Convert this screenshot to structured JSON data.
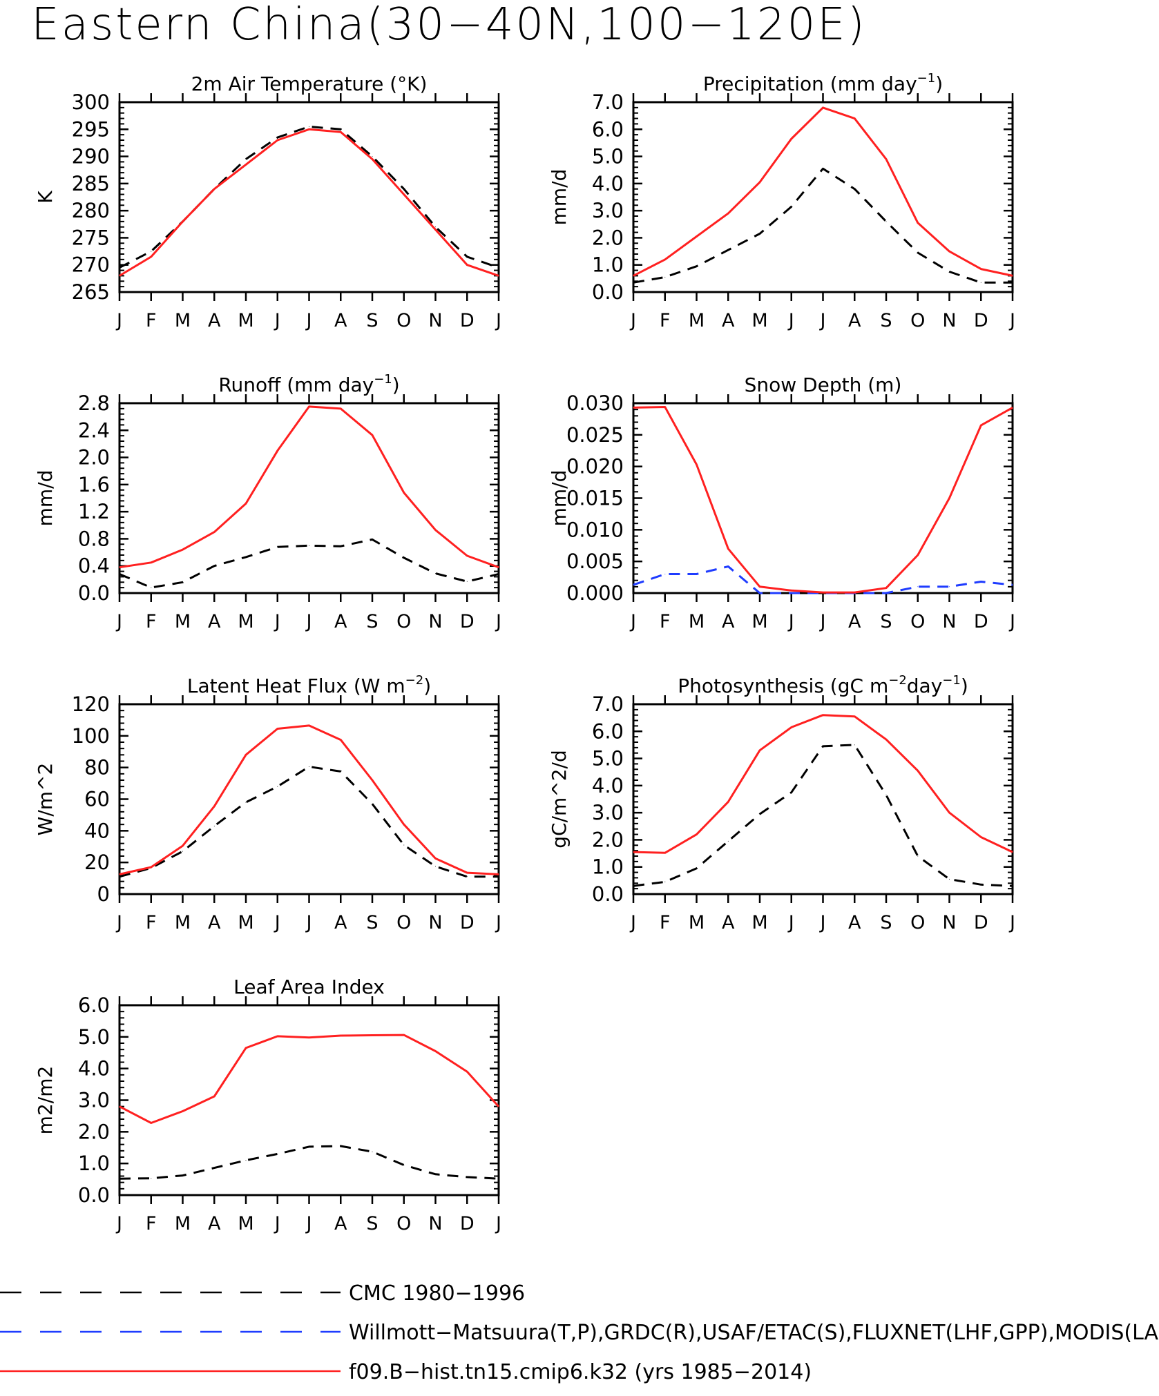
{
  "figure": {
    "title": "Eastern China(30−40N,100−120E)"
  },
  "months": [
    "J",
    "F",
    "M",
    "A",
    "M",
    "J",
    "J",
    "A",
    "S",
    "O",
    "N",
    "D",
    "J"
  ],
  "series_styles": {
    "obs1": {
      "color": "#000000",
      "dash": "dashed"
    },
    "obs2": {
      "color": "#1f3cff",
      "dash": "dashed"
    },
    "model": {
      "color": "#ff2020",
      "dash": "solid"
    }
  },
  "legend": [
    {
      "key": "obs1",
      "label": "CMC 1980−1996"
    },
    {
      "key": "obs2",
      "label": "Willmott−Matsuura(T,P),GRDC(R),USAF/ETAC(S),FLUXNET(LHF,GPP),MODIS(LAI)"
    },
    {
      "key": "model",
      "label": "f09.B−hist.tn15.cmip6.k32 (yrs 1985−2014)"
    }
  ],
  "chart_data": [
    {
      "type": "line",
      "title": "2m Air Temperature (°K)",
      "ylabel": "K",
      "ylim": [
        265,
        300
      ],
      "yticks": [
        265,
        270,
        275,
        280,
        285,
        290,
        295,
        300
      ],
      "ytick_labels": [
        "265",
        "270",
        "275",
        "280",
        "285",
        "290",
        "295",
        "300"
      ],
      "series": [
        {
          "key": "obs1",
          "values": [
            269.5,
            272.5,
            278.0,
            284.0,
            289.5,
            293.5,
            295.5,
            295.0,
            290.0,
            284.0,
            277.0,
            271.5,
            269.5
          ]
        },
        {
          "key": "model",
          "values": [
            268.0,
            271.5,
            278.0,
            284.0,
            288.5,
            293.0,
            295.0,
            294.5,
            289.5,
            283.0,
            276.5,
            270.0,
            268.0
          ]
        }
      ]
    },
    {
      "type": "line",
      "title": "Precipitation (mm day",
      "title_sup": "−1",
      "title_end": ")",
      "ylabel": "mm/d",
      "ylim": [
        0,
        7
      ],
      "yticks": [
        0,
        1,
        2,
        3,
        4,
        5,
        6,
        7
      ],
      "ytick_labels": [
        "0.0",
        "1.0",
        "2.0",
        "3.0",
        "4.0",
        "5.0",
        "6.0",
        "7.0"
      ],
      "series": [
        {
          "key": "obs1",
          "values": [
            0.35,
            0.55,
            0.95,
            1.55,
            2.15,
            3.15,
            4.55,
            3.8,
            2.6,
            1.45,
            0.75,
            0.35,
            0.35
          ]
        },
        {
          "key": "model",
          "values": [
            0.6,
            1.2,
            2.05,
            2.9,
            4.05,
            5.65,
            6.8,
            6.4,
            4.9,
            2.55,
            1.5,
            0.85,
            0.6
          ]
        }
      ]
    },
    {
      "type": "line",
      "title": "Runoff (mm day",
      "title_sup": "−1",
      "title_end": ")",
      "ylabel": "mm/d",
      "ylim": [
        0,
        2.8
      ],
      "yticks": [
        0,
        0.4,
        0.8,
        1.2,
        1.6,
        2.0,
        2.4,
        2.8
      ],
      "ytick_labels": [
        "0.0",
        "0.4",
        "0.8",
        "1.2",
        "1.6",
        "2.0",
        "2.4",
        "2.8"
      ],
      "series": [
        {
          "key": "obs1",
          "values": [
            0.28,
            0.08,
            0.16,
            0.4,
            0.53,
            0.68,
            0.7,
            0.69,
            0.79,
            0.52,
            0.29,
            0.17,
            0.28
          ]
        },
        {
          "key": "model",
          "values": [
            0.38,
            0.45,
            0.64,
            0.9,
            1.32,
            2.1,
            2.75,
            2.72,
            2.33,
            1.48,
            0.93,
            0.55,
            0.38
          ]
        }
      ]
    },
    {
      "type": "line",
      "title": "Snow Depth (m)",
      "ylabel": "mm/d",
      "ylim": [
        0,
        0.03
      ],
      "yticks": [
        0,
        0.005,
        0.01,
        0.015,
        0.02,
        0.025,
        0.03
      ],
      "ytick_labels": [
        "0.000",
        "0.005",
        "0.010",
        "0.015",
        "0.020",
        "0.025",
        "0.030"
      ],
      "series": [
        {
          "key": "obs1",
          "values": [
            0,
            0,
            0,
            0,
            0,
            0,
            0,
            0,
            0,
            0,
            0,
            0,
            0
          ]
        },
        {
          "key": "obs2",
          "values": [
            0.0013,
            0.003,
            0.003,
            0.0042,
            0,
            0,
            0,
            0,
            0,
            0.001,
            0.001,
            0.0018,
            0.0013
          ]
        },
        {
          "key": "model",
          "values": [
            0.0293,
            0.0294,
            0.0203,
            0.007,
            0.001,
            0.0004,
            0.0001,
            0.0001,
            0.0008,
            0.006,
            0.015,
            0.0265,
            0.0293
          ]
        }
      ]
    },
    {
      "type": "line",
      "title": "Latent Heat Flux (W m",
      "title_sup": "−2",
      "title_end": ")",
      "ylabel": "W/m^2",
      "ylim": [
        0,
        120
      ],
      "yticks": [
        0,
        20,
        40,
        60,
        80,
        100,
        120
      ],
      "ytick_labels": [
        "0",
        "20",
        "40",
        "60",
        "80",
        "100",
        "120"
      ],
      "series": [
        {
          "key": "obs1",
          "values": [
            11,
            16.5,
            27,
            43,
            58,
            68,
            80.5,
            77.5,
            57,
            31,
            17.5,
            11,
            11
          ]
        },
        {
          "key": "model",
          "values": [
            12.5,
            17,
            30.5,
            55.5,
            88,
            104.5,
            106.5,
            97.5,
            72,
            44,
            22.5,
            13.5,
            12.5
          ]
        }
      ]
    },
    {
      "type": "line",
      "title": "Photosynthesis (gC m",
      "title_sup": "−2",
      "title_mid": "day",
      "title_sup2": "−1",
      "title_end": ")",
      "ylabel": "gC/m^2/d",
      "ylim": [
        0,
        7
      ],
      "yticks": [
        0,
        1,
        2,
        3,
        4,
        5,
        6,
        7
      ],
      "ytick_labels": [
        "0.0",
        "1.0",
        "2.0",
        "3.0",
        "4.0",
        "5.0",
        "6.0",
        "7.0"
      ],
      "series": [
        {
          "key": "obs1",
          "values": [
            0.3,
            0.45,
            0.95,
            1.95,
            2.95,
            3.75,
            5.45,
            5.5,
            3.65,
            1.4,
            0.55,
            0.35,
            0.3
          ]
        },
        {
          "key": "model",
          "values": [
            1.55,
            1.52,
            2.2,
            3.4,
            5.3,
            6.15,
            6.6,
            6.55,
            5.7,
            4.55,
            3.0,
            2.1,
            1.55
          ]
        }
      ]
    },
    {
      "type": "line",
      "title": "Leaf Area Index",
      "ylabel": "m2/m2",
      "ylim": [
        0,
        6
      ],
      "yticks": [
        0,
        1,
        2,
        3,
        4,
        5,
        6
      ],
      "ytick_labels": [
        "0.0",
        "1.0",
        "2.0",
        "3.0",
        "4.0",
        "5.0",
        "6.0"
      ],
      "series": [
        {
          "key": "obs1",
          "values": [
            0.52,
            0.53,
            0.62,
            0.86,
            1.1,
            1.3,
            1.53,
            1.55,
            1.37,
            0.95,
            0.66,
            0.57,
            0.52
          ]
        },
        {
          "key": "model",
          "values": [
            2.8,
            2.28,
            2.65,
            3.12,
            4.65,
            5.02,
            4.98,
            5.04,
            5.05,
            5.06,
            4.55,
            3.9,
            2.8
          ]
        }
      ]
    }
  ]
}
